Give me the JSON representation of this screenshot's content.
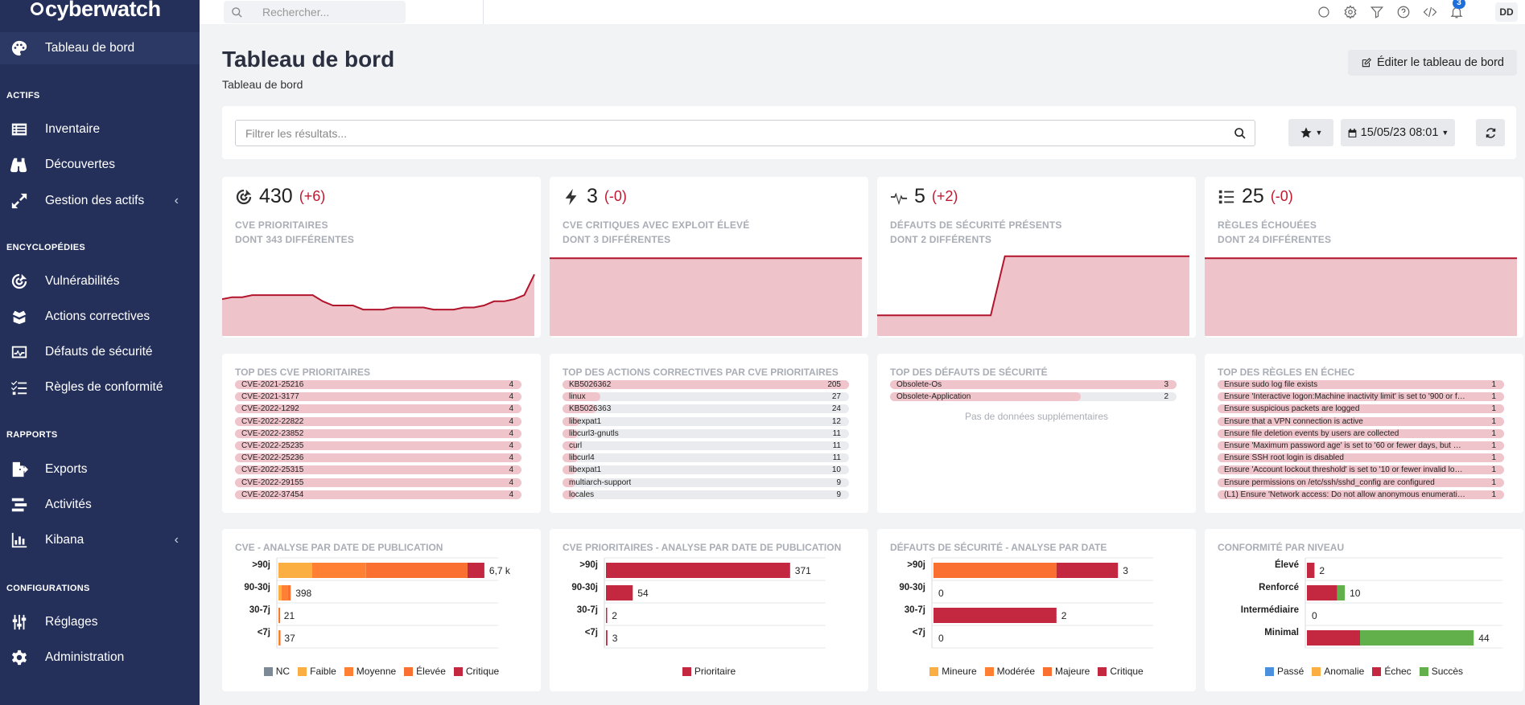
{
  "brand": {
    "name": "cyberwatch"
  },
  "sidebar": {
    "dashboard": "Tableau de bord",
    "sections": {
      "actifs": "ACTIFS",
      "encyclopedies": "ENCYCLOPÉDIES",
      "rapports": "RAPPORTS",
      "configurations": "CONFIGURATIONS"
    },
    "items": {
      "inventaire": "Inventaire",
      "decouvertes": "Découvertes",
      "gestion": "Gestion des actifs",
      "vulnerabilites": "Vulnérabilités",
      "actions": "Actions correctives",
      "defauts": "Défauts de sécurité",
      "regles": "Règles de conformité",
      "exports": "Exports",
      "activites": "Activités",
      "kibana": "Kibana",
      "reglages": "Réglages",
      "administration": "Administration"
    }
  },
  "topbar": {
    "search_placeholder": "Rechercher...",
    "notifications_count": "3",
    "user_initials": "DD"
  },
  "header": {
    "title": "Tableau de bord",
    "breadcrumb": "Tableau de bord",
    "edit_label": "Éditer le tableau de bord"
  },
  "filters": {
    "placeholder": "Filtrer les résultats...",
    "date": "15/05/23 08:01"
  },
  "kpis": [
    {
      "icon": "target-icon",
      "value": "430",
      "delta": "(+6)",
      "label1": "CVE prioritaires",
      "label2": "dont 343 différentes",
      "trend": [
        343,
        344,
        344,
        345,
        345,
        345,
        345,
        345,
        345,
        345,
        342,
        340,
        340,
        340,
        338,
        338,
        338,
        339,
        339,
        339,
        339,
        338,
        338,
        338,
        339,
        339,
        340,
        342,
        342,
        343,
        345,
        355
      ]
    },
    {
      "icon": "bolt-icon",
      "value": "3",
      "delta": "(-0)",
      "label1": "CVE critiques avec exploit élevé",
      "label2": "dont 3 différentes",
      "trend": [
        3,
        3,
        3,
        3,
        3,
        3,
        3,
        3,
        3,
        3
      ]
    },
    {
      "icon": "heartbeat-icon",
      "value": "5",
      "delta": "(+2)",
      "label1": "Défauts de sécurité présents",
      "label2": "dont 2 différents",
      "trend": [
        3,
        3,
        3,
        3,
        3,
        3,
        3,
        3,
        3,
        5,
        5,
        5,
        5,
        5,
        5,
        5,
        5,
        5,
        5,
        5,
        5,
        5,
        5
      ]
    },
    {
      "icon": "list-icon",
      "value": "25",
      "delta": "(-0)",
      "label1": "Règles échouées",
      "label2": "dont 24 différentes",
      "trend": [
        25,
        25,
        25,
        25,
        25,
        25,
        25,
        25,
        25
      ]
    }
  ],
  "tops": [
    {
      "title": "Top des CVE prioritaires",
      "max": 4,
      "items": [
        {
          "name": "CVE-2021-25216",
          "value": 4
        },
        {
          "name": "CVE-2021-3177",
          "value": 4
        },
        {
          "name": "CVE-2022-1292",
          "value": 4
        },
        {
          "name": "CVE-2022-22822",
          "value": 4
        },
        {
          "name": "CVE-2022-23852",
          "value": 4
        },
        {
          "name": "CVE-2022-25235",
          "value": 4
        },
        {
          "name": "CVE-2022-25236",
          "value": 4
        },
        {
          "name": "CVE-2022-25315",
          "value": 4
        },
        {
          "name": "CVE-2022-29155",
          "value": 4
        },
        {
          "name": "CVE-2022-37454",
          "value": 4
        }
      ]
    },
    {
      "title": "Top des actions correctives par CVE prioritaires",
      "max": 205,
      "items": [
        {
          "name": "KB5026362",
          "value": 205
        },
        {
          "name": "linux",
          "value": 27
        },
        {
          "name": "KB5026363",
          "value": 24
        },
        {
          "name": "libexpat1",
          "value": 12
        },
        {
          "name": "libcurl3-gnutls",
          "value": 11
        },
        {
          "name": "curl",
          "value": 11
        },
        {
          "name": "libcurl4",
          "value": 11
        },
        {
          "name": "libexpat1",
          "value": 10
        },
        {
          "name": "multiarch-support",
          "value": 9
        },
        {
          "name": "locales",
          "value": 9
        }
      ]
    },
    {
      "title": "Top des défauts de sécurité",
      "max": 3,
      "items": [
        {
          "name": "Obsolete-Os",
          "value": 3
        },
        {
          "name": "Obsolete-Application",
          "value": 2
        }
      ],
      "no_more": "Pas de données supplémentaires"
    },
    {
      "title": "Top des règles en échec",
      "max": 1,
      "items": [
        {
          "name": "Ensure sudo log file exists",
          "value": 1
        },
        {
          "name": "Ensure 'Interactive logon:Machine inactivity limit' is set to '900 or fe...",
          "value": 1
        },
        {
          "name": "Ensure suspicious packets are logged",
          "value": 1
        },
        {
          "name": "Ensure that a VPN connection is active",
          "value": 1
        },
        {
          "name": "Ensure file deletion events by users are collected",
          "value": 1
        },
        {
          "name": "Ensure 'Maximum password age' is set to '60 or fewer days, but no...",
          "value": 1
        },
        {
          "name": "Ensure SSH root login is disabled",
          "value": 1
        },
        {
          "name": "Ensure 'Account lockout threshold' is set to '10 or fewer invalid logo...",
          "value": 1
        },
        {
          "name": "Ensure permissions on /etc/ssh/sshd_config are configured",
          "value": 1
        },
        {
          "name": "(L1) Ensure 'Network access: Do not allow anonymous enumeration...",
          "value": 1
        }
      ]
    }
  ],
  "chart_data": [
    {
      "type": "bar",
      "stacked": true,
      "orientation": "horizontal",
      "title": "CVE - Analyse par date de publication",
      "categories": [
        ">90j",
        "90-30j",
        "30-7j",
        "<7j"
      ],
      "labels": [
        "6,7 k",
        "398",
        "21",
        "37"
      ],
      "xlim": [
        0,
        7200
      ],
      "series": [
        {
          "name": "NC",
          "color": "#7d8a96",
          "values": [
            0,
            0,
            0,
            0
          ]
        },
        {
          "name": "Faible",
          "color": "#fbae42",
          "values": [
            1100,
            100,
            5,
            10
          ]
        },
        {
          "name": "Moyenne",
          "color": "#ff8033",
          "values": [
            1750,
            200,
            10,
            17
          ]
        },
        {
          "name": "Élevée",
          "color": "#fa7030",
          "values": [
            3300,
            98,
            6,
            10
          ]
        },
        {
          "name": "Critique",
          "color": "#c42840",
          "values": [
            550,
            0,
            0,
            0
          ]
        }
      ]
    },
    {
      "type": "bar",
      "stacked": true,
      "orientation": "horizontal",
      "title": "CVE prioritaires - Analyse par date de publication",
      "categories": [
        ">90j",
        "90-30j",
        "30-7j",
        "<7j"
      ],
      "labels": [
        "371",
        "54",
        "2",
        "3"
      ],
      "xlim": [
        0,
        446
      ],
      "series": [
        {
          "name": "Prioritaire",
          "color": "#c42840",
          "values": [
            371,
            54,
            2,
            3
          ]
        }
      ]
    },
    {
      "type": "bar",
      "stacked": true,
      "orientation": "horizontal",
      "title": "Défauts de sécurité - Analyse par date",
      "categories": [
        ">90j",
        "90-30j",
        "30-7j",
        "<7j"
      ],
      "labels": [
        "3",
        "0",
        "2",
        "0"
      ],
      "xlim": [
        0,
        3.6
      ],
      "series": [
        {
          "name": "Mineure",
          "color": "#fbae42",
          "values": [
            0,
            0,
            0,
            0
          ]
        },
        {
          "name": "Modérée",
          "color": "#ff8033",
          "values": [
            0,
            0,
            0,
            0
          ]
        },
        {
          "name": "Majeure",
          "color": "#fa7030",
          "values": [
            2,
            0,
            0,
            0
          ]
        },
        {
          "name": "Critique",
          "color": "#c42840",
          "values": [
            1,
            0,
            2,
            0
          ]
        }
      ]
    },
    {
      "type": "bar",
      "stacked": true,
      "orientation": "horizontal",
      "title": "Conformité par niveau",
      "categories": [
        "Élevé",
        "Renforcé",
        "Intermédiaire",
        "Minimal"
      ],
      "labels": [
        "2",
        "10",
        "0",
        "44"
      ],
      "xlim": [
        0,
        52
      ],
      "series": [
        {
          "name": "Passé",
          "color": "#4b8fdf",
          "values": [
            0,
            0,
            0,
            0
          ]
        },
        {
          "name": "Anomalie",
          "color": "#fbae42",
          "values": [
            0,
            0,
            0,
            0
          ]
        },
        {
          "name": "Échec",
          "color": "#c42840",
          "values": [
            2,
            8,
            0,
            14
          ]
        },
        {
          "name": "Succès",
          "color": "#62b04c",
          "values": [
            0,
            2,
            0,
            30
          ]
        }
      ]
    }
  ]
}
